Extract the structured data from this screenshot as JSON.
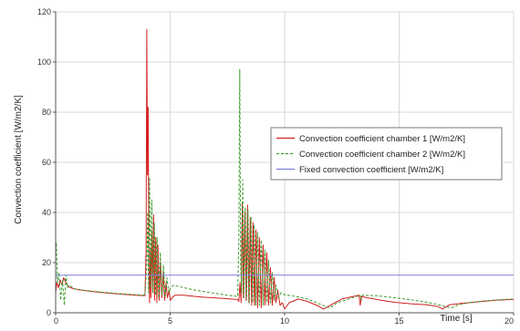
{
  "chart_data": {
    "type": "line",
    "title": "",
    "xlabel": "Time [s]",
    "ylabel": "Convection coefficient [W/m2/K]",
    "xlim": [
      0,
      20
    ],
    "ylim": [
      0,
      120
    ],
    "x_ticks": [
      0,
      5,
      10,
      15,
      20
    ],
    "y_ticks": [
      0,
      20,
      40,
      60,
      80,
      100,
      120
    ],
    "grid": true,
    "legend_position": "right",
    "series": [
      {
        "name": "Convection coefficient chamber 1 [W/m2/K]",
        "color": "#d42020",
        "style": "solid",
        "points": [
          [
            0,
            8
          ],
          [
            0.05,
            12
          ],
          [
            0.12,
            10
          ],
          [
            0.2,
            13
          ],
          [
            0.28,
            11
          ],
          [
            0.35,
            14
          ],
          [
            0.45,
            12
          ],
          [
            0.55,
            10.5
          ],
          [
            0.7,
            9.8
          ],
          [
            1.0,
            9.2
          ],
          [
            1.5,
            8.6
          ],
          [
            2.0,
            8.1
          ],
          [
            2.5,
            7.7
          ],
          [
            3.0,
            7.3
          ],
          [
            3.5,
            7.0
          ],
          [
            3.9,
            6.8
          ],
          [
            3.95,
            25
          ],
          [
            3.98,
            113
          ],
          [
            4.01,
            55
          ],
          [
            4.04,
            82
          ],
          [
            4.07,
            20
          ],
          [
            4.1,
            4
          ],
          [
            4.13,
            25
          ],
          [
            4.16,
            6
          ],
          [
            4.2,
            33
          ],
          [
            4.24,
            8
          ],
          [
            4.28,
            39
          ],
          [
            4.32,
            5
          ],
          [
            4.37,
            30
          ],
          [
            4.42,
            4
          ],
          [
            4.47,
            27
          ],
          [
            4.52,
            5
          ],
          [
            4.58,
            20
          ],
          [
            4.64,
            6
          ],
          [
            4.7,
            16
          ],
          [
            4.76,
            5
          ],
          [
            4.82,
            12
          ],
          [
            4.88,
            6
          ],
          [
            4.95,
            9
          ],
          [
            5.0,
            5
          ],
          [
            5.2,
            7
          ],
          [
            5.6,
            7
          ],
          [
            6.0,
            6.6
          ],
          [
            6.5,
            6.2
          ],
          [
            7.0,
            5.9
          ],
          [
            7.5,
            5.6
          ],
          [
            7.95,
            5.3
          ],
          [
            8.0,
            4.5
          ],
          [
            8.05,
            12
          ],
          [
            8.1,
            4
          ],
          [
            8.15,
            44
          ],
          [
            8.2,
            6
          ],
          [
            8.26,
            40
          ],
          [
            8.32,
            5
          ],
          [
            8.38,
            43
          ],
          [
            8.44,
            4
          ],
          [
            8.5,
            38
          ],
          [
            8.56,
            3
          ],
          [
            8.62,
            36
          ],
          [
            8.68,
            3
          ],
          [
            8.75,
            33
          ],
          [
            8.82,
            2
          ],
          [
            8.9,
            30
          ],
          [
            8.98,
            2
          ],
          [
            9.06,
            27
          ],
          [
            9.14,
            3
          ],
          [
            9.22,
            24
          ],
          [
            9.3,
            3
          ],
          [
            9.38,
            18
          ],
          [
            9.46,
            3
          ],
          [
            9.54,
            14
          ],
          [
            9.62,
            4
          ],
          [
            9.7,
            9
          ],
          [
            9.8,
            3
          ],
          [
            9.9,
            4
          ],
          [
            10.0,
            1.5
          ],
          [
            10.2,
            4
          ],
          [
            10.6,
            5.5
          ],
          [
            11.0,
            4.5
          ],
          [
            11.4,
            3
          ],
          [
            11.7,
            1.5
          ],
          [
            12.0,
            3
          ],
          [
            12.5,
            5.5
          ],
          [
            13.0,
            6.5
          ],
          [
            13.25,
            7
          ],
          [
            13.3,
            3
          ],
          [
            13.35,
            6.5
          ],
          [
            13.6,
            6
          ],
          [
            14.2,
            5
          ],
          [
            14.8,
            4.2
          ],
          [
            15.5,
            3.6
          ],
          [
            16.2,
            3.2
          ],
          [
            16.7,
            2.5
          ],
          [
            16.9,
            1.5
          ],
          [
            17.2,
            3.2
          ],
          [
            17.8,
            3.8
          ],
          [
            18.5,
            4.4
          ],
          [
            19.2,
            5
          ],
          [
            20,
            5.3
          ]
        ]
      },
      {
        "name": "Convection coefficient chamber 2 [W/m2/K]",
        "color": "#3a9a2a",
        "style": "dashed",
        "points": [
          [
            0,
            25
          ],
          [
            0.03,
            28
          ],
          [
            0.08,
            12
          ],
          [
            0.15,
            16
          ],
          [
            0.22,
            5
          ],
          [
            0.3,
            13
          ],
          [
            0.38,
            3
          ],
          [
            0.45,
            15
          ],
          [
            0.52,
            10
          ],
          [
            0.6,
            11
          ],
          [
            0.8,
            9.6
          ],
          [
            1.2,
            9.0
          ],
          [
            1.8,
            8.4
          ],
          [
            2.4,
            7.9
          ],
          [
            3.0,
            7.5
          ],
          [
            3.5,
            7.2
          ],
          [
            3.9,
            7.0
          ],
          [
            3.98,
            20
          ],
          [
            4.02,
            40
          ],
          [
            4.06,
            8
          ],
          [
            4.1,
            54
          ],
          [
            4.15,
            10
          ],
          [
            4.2,
            45
          ],
          [
            4.25,
            8
          ],
          [
            4.31,
            36
          ],
          [
            4.37,
            7
          ],
          [
            4.43,
            30
          ],
          [
            4.5,
            6
          ],
          [
            4.57,
            24
          ],
          [
            4.64,
            7
          ],
          [
            4.71,
            19
          ],
          [
            4.78,
            6
          ],
          [
            4.86,
            14
          ],
          [
            4.94,
            8
          ],
          [
            5.02,
            10
          ],
          [
            5.15,
            11
          ],
          [
            5.5,
            10.2
          ],
          [
            6.0,
            9.2
          ],
          [
            6.5,
            8.4
          ],
          [
            7.0,
            7.7
          ],
          [
            7.5,
            7.0
          ],
          [
            7.95,
            6.5
          ],
          [
            8.0,
            30
          ],
          [
            8.04,
            97
          ],
          [
            8.08,
            20
          ],
          [
            8.12,
            8
          ],
          [
            8.17,
            53
          ],
          [
            8.22,
            6
          ],
          [
            8.28,
            42
          ],
          [
            8.34,
            5
          ],
          [
            8.4,
            41
          ],
          [
            8.46,
            4
          ],
          [
            8.53,
            38
          ],
          [
            8.6,
            4
          ],
          [
            8.67,
            35
          ],
          [
            8.74,
            3
          ],
          [
            8.82,
            32
          ],
          [
            8.9,
            3
          ],
          [
            8.98,
            29
          ],
          [
            9.06,
            3
          ],
          [
            9.14,
            25
          ],
          [
            9.22,
            4
          ],
          [
            9.3,
            21
          ],
          [
            9.38,
            4
          ],
          [
            9.46,
            16
          ],
          [
            9.54,
            5
          ],
          [
            9.62,
            11
          ],
          [
            9.72,
            6
          ],
          [
            9.85,
            8
          ],
          [
            10.0,
            7.2
          ],
          [
            10.5,
            6.5
          ],
          [
            11.0,
            5.5
          ],
          [
            11.4,
            4
          ],
          [
            11.8,
            2.5
          ],
          [
            12.0,
            2
          ],
          [
            12.3,
            4
          ],
          [
            12.8,
            5.5
          ],
          [
            13.3,
            7
          ],
          [
            13.35,
            5
          ],
          [
            13.4,
            7
          ],
          [
            14.0,
            6.8
          ],
          [
            14.8,
            6
          ],
          [
            15.5,
            5.2
          ],
          [
            16.2,
            4.2
          ],
          [
            16.7,
            3.3
          ],
          [
            17.0,
            2.5
          ],
          [
            17.3,
            2
          ],
          [
            17.6,
            3.2
          ],
          [
            18.2,
            4.2
          ],
          [
            18.8,
            4.8
          ],
          [
            19.4,
            5.2
          ],
          [
            20,
            5.5
          ]
        ]
      },
      {
        "name": "Fixed convection coefficient [W/m2/K]",
        "color": "#7f7fdc",
        "style": "solid",
        "points": [
          [
            0,
            15
          ],
          [
            20,
            15
          ]
        ]
      }
    ]
  }
}
